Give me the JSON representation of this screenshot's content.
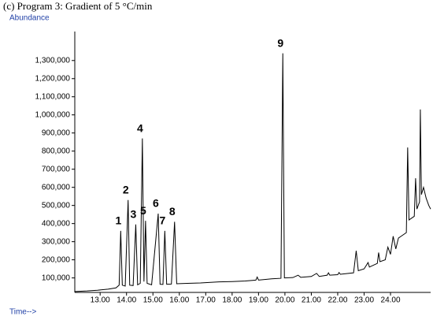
{
  "chart_data": {
    "type": "line",
    "title": "(c) Program 3: Gradient of 5 °C/min",
    "y_label": "Abundance",
    "x_label": "Time-->",
    "color": "#000000",
    "grid": false,
    "xlim": [
      12.04,
      25.52
    ],
    "ylim": [
      20000,
      1460000
    ],
    "xticks": [
      {
        "value": 13,
        "label": "13.00"
      },
      {
        "value": 14,
        "label": "14.00"
      },
      {
        "value": 15,
        "label": "15.00"
      },
      {
        "value": 16,
        "label": "16.00"
      },
      {
        "value": 17,
        "label": "17.00"
      },
      {
        "value": 18,
        "label": "18.00"
      },
      {
        "value": 19,
        "label": "19.00"
      },
      {
        "value": 20,
        "label": "20.00"
      },
      {
        "value": 21,
        "label": "21.00"
      },
      {
        "value": 22,
        "label": "22.00"
      },
      {
        "value": 23,
        "label": "23.00"
      },
      {
        "value": 24,
        "label": "24.00"
      }
    ],
    "yticks": [
      {
        "value": 100000,
        "label": "100,000"
      },
      {
        "value": 200000,
        "label": "200,000"
      },
      {
        "value": 300000,
        "label": "300,000"
      },
      {
        "value": 400000,
        "label": "400,000"
      },
      {
        "value": 500000,
        "label": "500,000"
      },
      {
        "value": 600000,
        "label": "600,000"
      },
      {
        "value": 700000,
        "label": "700,000"
      },
      {
        "value": 800000,
        "label": "800,000"
      },
      {
        "value": 900000,
        "label": "900,000"
      },
      {
        "value": 1000000,
        "label": "1,000,000"
      },
      {
        "value": 1100000,
        "label": "1,100,000"
      },
      {
        "value": 1200000,
        "label": "1,200,000"
      },
      {
        "value": 1300000,
        "label": "1,300,000"
      }
    ],
    "x": [
      12.05,
      12.5,
      12.9,
      13.3,
      13.6,
      13.72,
      13.78,
      13.84,
      13.95,
      14.06,
      14.12,
      14.25,
      14.35,
      14.42,
      14.52,
      14.6,
      14.66,
      14.72,
      14.78,
      14.95,
      15.2,
      15.27,
      15.38,
      15.45,
      15.52,
      15.7,
      15.82,
      15.9,
      16.3,
      16.8,
      17.5,
      18.0,
      18.5,
      18.9,
      18.95,
      19.0,
      19.5,
      19.85,
      19.92,
      19.98,
      20.3,
      20.5,
      20.6,
      21.0,
      21.2,
      21.3,
      21.6,
      21.65,
      21.7,
      22.0,
      22.05,
      22.1,
      22.6,
      22.7,
      22.78,
      23.0,
      23.15,
      23.2,
      23.5,
      23.55,
      23.6,
      23.8,
      23.9,
      24.0,
      24.1,
      24.2,
      24.3,
      24.4,
      24.6,
      24.65,
      24.7,
      24.9,
      24.95,
      25.0,
      25.1,
      25.13,
      25.17,
      25.25,
      25.35,
      25.45,
      25.52
    ],
    "values": [
      25000,
      28000,
      32000,
      38000,
      45000,
      60000,
      360000,
      60000,
      55000,
      530000,
      60000,
      58000,
      395000,
      62000,
      70000,
      870000,
      80000,
      415000,
      70000,
      62000,
      455000,
      65000,
      64000,
      360000,
      65000,
      66000,
      410000,
      68000,
      70000,
      72000,
      78000,
      80000,
      83000,
      88000,
      105000,
      88000,
      95000,
      98000,
      1340000,
      100000,
      102000,
      115000,
      103000,
      108000,
      125000,
      108000,
      115000,
      128000,
      115000,
      118000,
      130000,
      120000,
      128000,
      250000,
      140000,
      150000,
      185000,
      160000,
      180000,
      240000,
      190000,
      200000,
      270000,
      230000,
      330000,
      260000,
      320000,
      330000,
      350000,
      820000,
      420000,
      440000,
      650000,
      480000,
      520000,
      1030000,
      560000,
      600000,
      540000,
      500000,
      480000
    ],
    "annotations": [
      {
        "text": "1",
        "x": 13.78,
        "y": 360000
      },
      {
        "text": "2",
        "x": 14.06,
        "y": 530000
      },
      {
        "text": "3",
        "x": 14.35,
        "y": 395000
      },
      {
        "text": "4",
        "x": 14.6,
        "y": 870000
      },
      {
        "text": "5",
        "x": 14.72,
        "y": 415000
      },
      {
        "text": "6",
        "x": 15.2,
        "y": 455000
      },
      {
        "text": "7",
        "x": 15.45,
        "y": 360000
      },
      {
        "text": "8",
        "x": 15.82,
        "y": 410000
      },
      {
        "text": "9",
        "x": 19.92,
        "y": 1340000
      }
    ]
  }
}
